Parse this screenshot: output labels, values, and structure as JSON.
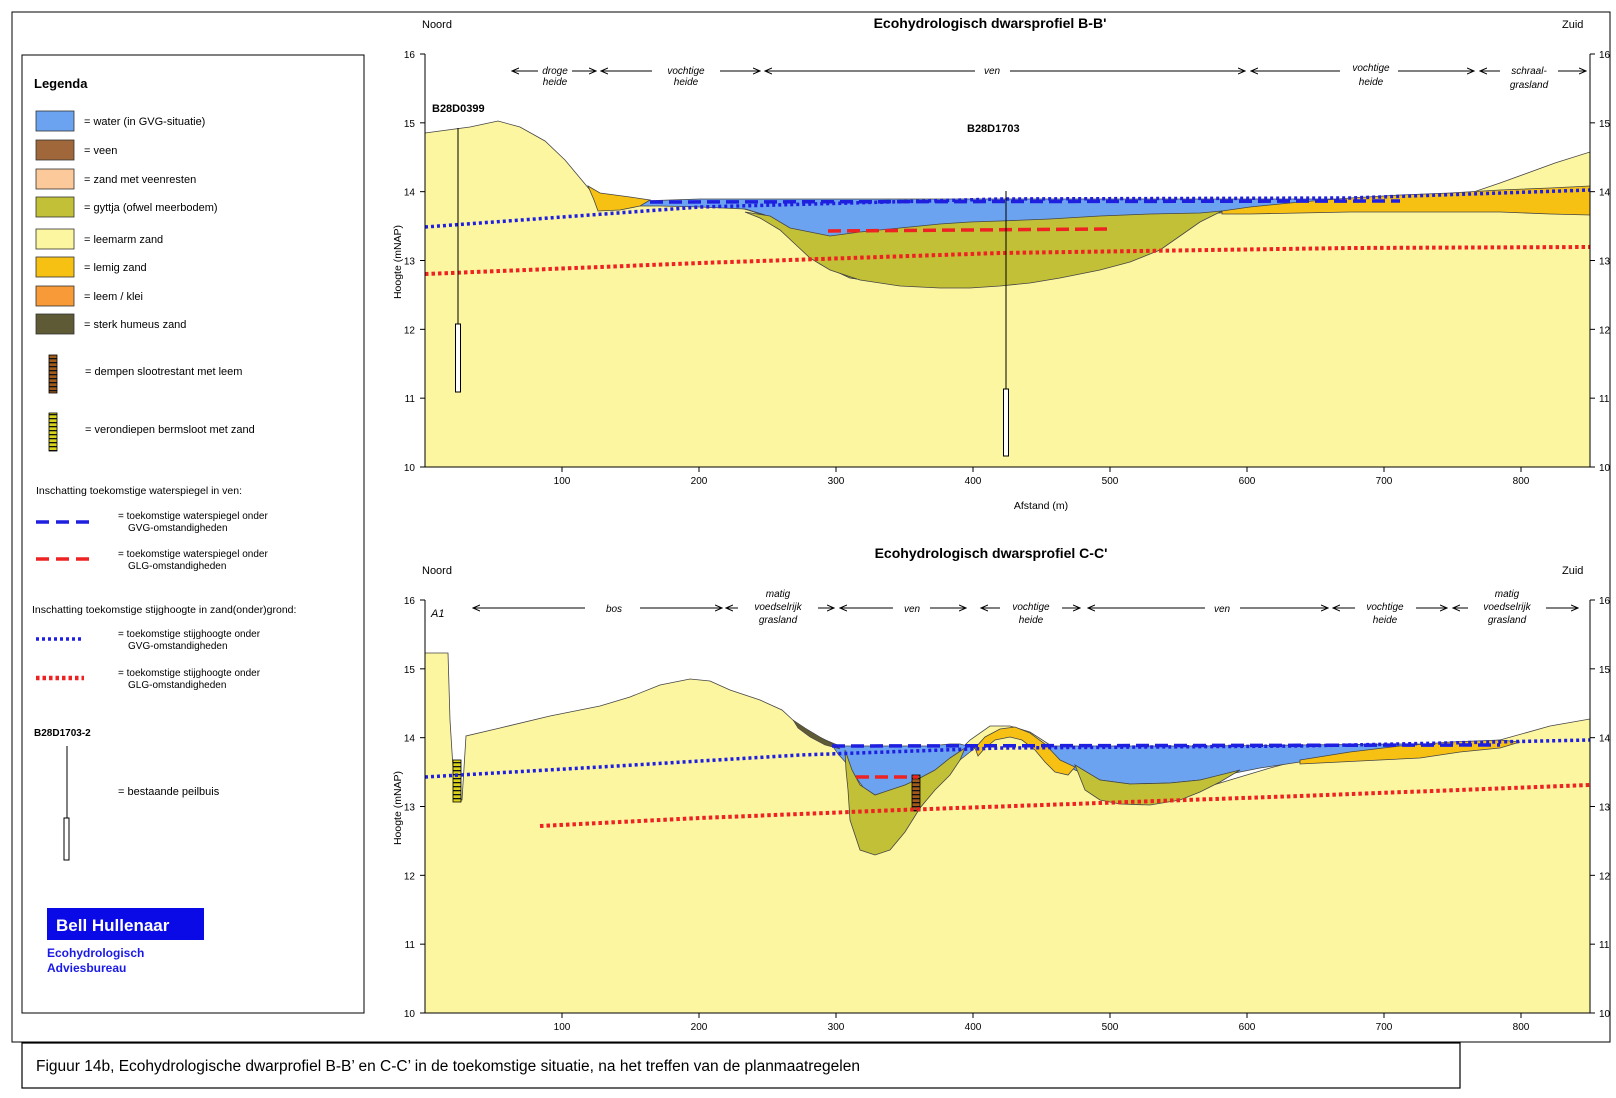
{
  "legend": {
    "title": "Legenda",
    "items": [
      {
        "label": "= water (in GVG-situatie)",
        "color": "#6ba3f0"
      },
      {
        "label": "= veen",
        "color": "#a0673a"
      },
      {
        "label": "= zand met veenresten",
        "color": "#fcc99a"
      },
      {
        "label": "= gyttja (ofwel meerbodem)",
        "color": "#c2c037"
      },
      {
        "label": "= leemarm zand",
        "color": "#fdf6a1"
      },
      {
        "label": "= lemig zand",
        "color": "#f7c114"
      },
      {
        "label": "= leem / klei",
        "color": "#f79a37"
      },
      {
        "label": "= sterk humeus zand",
        "color": "#5e5a35"
      }
    ],
    "measure1": "= dempen slootrestant met leem",
    "measure2": "= verondiepen bermsloot met zand",
    "sec1_heading": "Inschatting toekomstige waterspiegel in ven:",
    "sec1_items": [
      {
        "line1": "= toekomstige waterspiegel onder",
        "line2": "GVG-omstandigheden",
        "color": "#1f1fe0"
      },
      {
        "line1": "= toekomstige waterspiegel onder",
        "line2": "GLG-omstandigheden",
        "color": "#ee2222"
      }
    ],
    "sec2_heading": "Inschatting toekomstige stijghoogte in zand(onder)grond:",
    "sec2_items": [
      {
        "line1": "= toekomstige stijghoogte onder",
        "line2": "GVG-omstandigheden",
        "color": "#1f1fe0"
      },
      {
        "line1": "= toekomstige stijghoogte onder",
        "line2": "GLG-omstandigheden",
        "color": "#ee2222"
      }
    ],
    "peilbuis_id": "B28D1703-2",
    "peilbuis_label": "= bestaande peilbuis",
    "logo": "Bell Hullenaar",
    "firm_line1": "Ecohydrologisch",
    "firm_line2": "Adviesbureau"
  },
  "profile_bb": {
    "title": "Ecohydrologisch dwarsprofiel B-B'",
    "north": "Noord",
    "south": "Zuid",
    "ylabel": "Hoogte (mNAP)",
    "xlabel": "Afstand (m)",
    "yticks": [
      "16",
      "15",
      "14",
      "13",
      "12",
      "11",
      "10"
    ],
    "yticks_right": [
      "16",
      "15",
      "14",
      "13",
      "12",
      "11",
      "10"
    ],
    "xticks": [
      "100",
      "200",
      "300",
      "400",
      "500",
      "600",
      "700",
      "800"
    ],
    "wells": [
      "B28D0399",
      "B28D1703"
    ],
    "zones": [
      {
        "l1": "droge",
        "l2": "heide"
      },
      {
        "l1": "vochtige",
        "l2": "heide"
      },
      {
        "l1": "ven",
        "l2": ""
      },
      {
        "l1": "vochtige",
        "l2": "heide"
      },
      {
        "l1": "schraal-",
        "l2": "grasland"
      }
    ]
  },
  "profile_cc": {
    "title": "Ecohydrologisch dwarsprofiel C-C'",
    "north": "Noord",
    "south": "Zuid",
    "ylabel": "Hoogte (mNAP)",
    "yticks": [
      "16",
      "15",
      "14",
      "13",
      "12",
      "11",
      "10"
    ],
    "yticks_right": [
      "16",
      "15",
      "14",
      "13",
      "12",
      "11",
      "10"
    ],
    "xticks": [
      "100",
      "200",
      "300",
      "400",
      "500",
      "600",
      "700",
      "800"
    ],
    "marker": "A1",
    "zones": [
      {
        "l0": "",
        "l1": "bos",
        "l2": ""
      },
      {
        "l0": "matig",
        "l1": "voedselrijk",
        "l2": "grasland"
      },
      {
        "l0": "",
        "l1": "ven",
        "l2": ""
      },
      {
        "l0": "",
        "l1": "vochtige",
        "l2": "heide"
      },
      {
        "l0": "",
        "l1": "ven",
        "l2": ""
      },
      {
        "l0": "",
        "l1": "vochtige",
        "l2": "heide"
      },
      {
        "l0": "matig",
        "l1": "voedselrijk",
        "l2": "grasland"
      }
    ]
  },
  "caption": "Figuur 14b, Ecohydrologische dwarprofiel B-B’ en C-C’ in de toekomstige situatie, na het treffen van de planmaatregelen"
}
